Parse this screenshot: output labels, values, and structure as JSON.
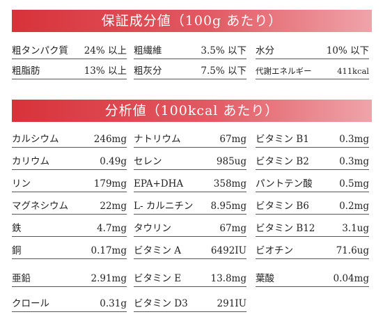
{
  "guarantee": {
    "title": "保証成分値（100g あたり）",
    "items": [
      {
        "label": "粗タンパク質",
        "value": "24% 以上"
      },
      {
        "label": "粗繊維",
        "value": "3.5% 以下"
      },
      {
        "label": "水分",
        "value": "10% 以下"
      },
      {
        "label": "粗脂肪",
        "value": "13% 以上"
      },
      {
        "label": "粗灰分",
        "value": "7.5% 以下"
      },
      {
        "label": "代謝エネルギー",
        "value": "411kcal"
      }
    ]
  },
  "analysis": {
    "title": "分析値（100kcal あたり）",
    "items": [
      {
        "label": "カルシウム",
        "value": "246mg"
      },
      {
        "label": "ナトリウム",
        "value": "67mg"
      },
      {
        "label": "ビタミン B1",
        "value": "0.3mg"
      },
      {
        "label": "カリウム",
        "value": "0.49g"
      },
      {
        "label": "セレン",
        "value": "985ug"
      },
      {
        "label": "ビタミン B2",
        "value": "0.3mg"
      },
      {
        "label": "リン",
        "value": "179mg"
      },
      {
        "label": "EPA+DHA",
        "value": "358mg"
      },
      {
        "label": "パントテン酸",
        "value": "0.5mg"
      },
      {
        "label": "マグネシウム",
        "value": "22mg"
      },
      {
        "label": "L- カルニチン",
        "value": "8.95mg"
      },
      {
        "label": "ビタミン B6",
        "value": "0.2mg"
      },
      {
        "label": "鉄",
        "value": "4.7mg"
      },
      {
        "label": "タウリン",
        "value": "67mg"
      },
      {
        "label": "ビタミン B12",
        "value": "3.1ug"
      },
      {
        "label": "銅",
        "value": "0.17mg"
      },
      {
        "label": "ビタミン A",
        "value": "6492IU"
      },
      {
        "label": "ビオチン",
        "value": "71.6ug"
      },
      {
        "label": "亜鉛",
        "value": "2.91mg"
      },
      {
        "label": "ビタミン E",
        "value": "13.8mg"
      },
      {
        "label": "葉酸",
        "value": "0.04mg"
      },
      {
        "label": "クロール",
        "value": "0.31g"
      },
      {
        "label": "ビタミン D3",
        "value": "291IU"
      }
    ]
  }
}
